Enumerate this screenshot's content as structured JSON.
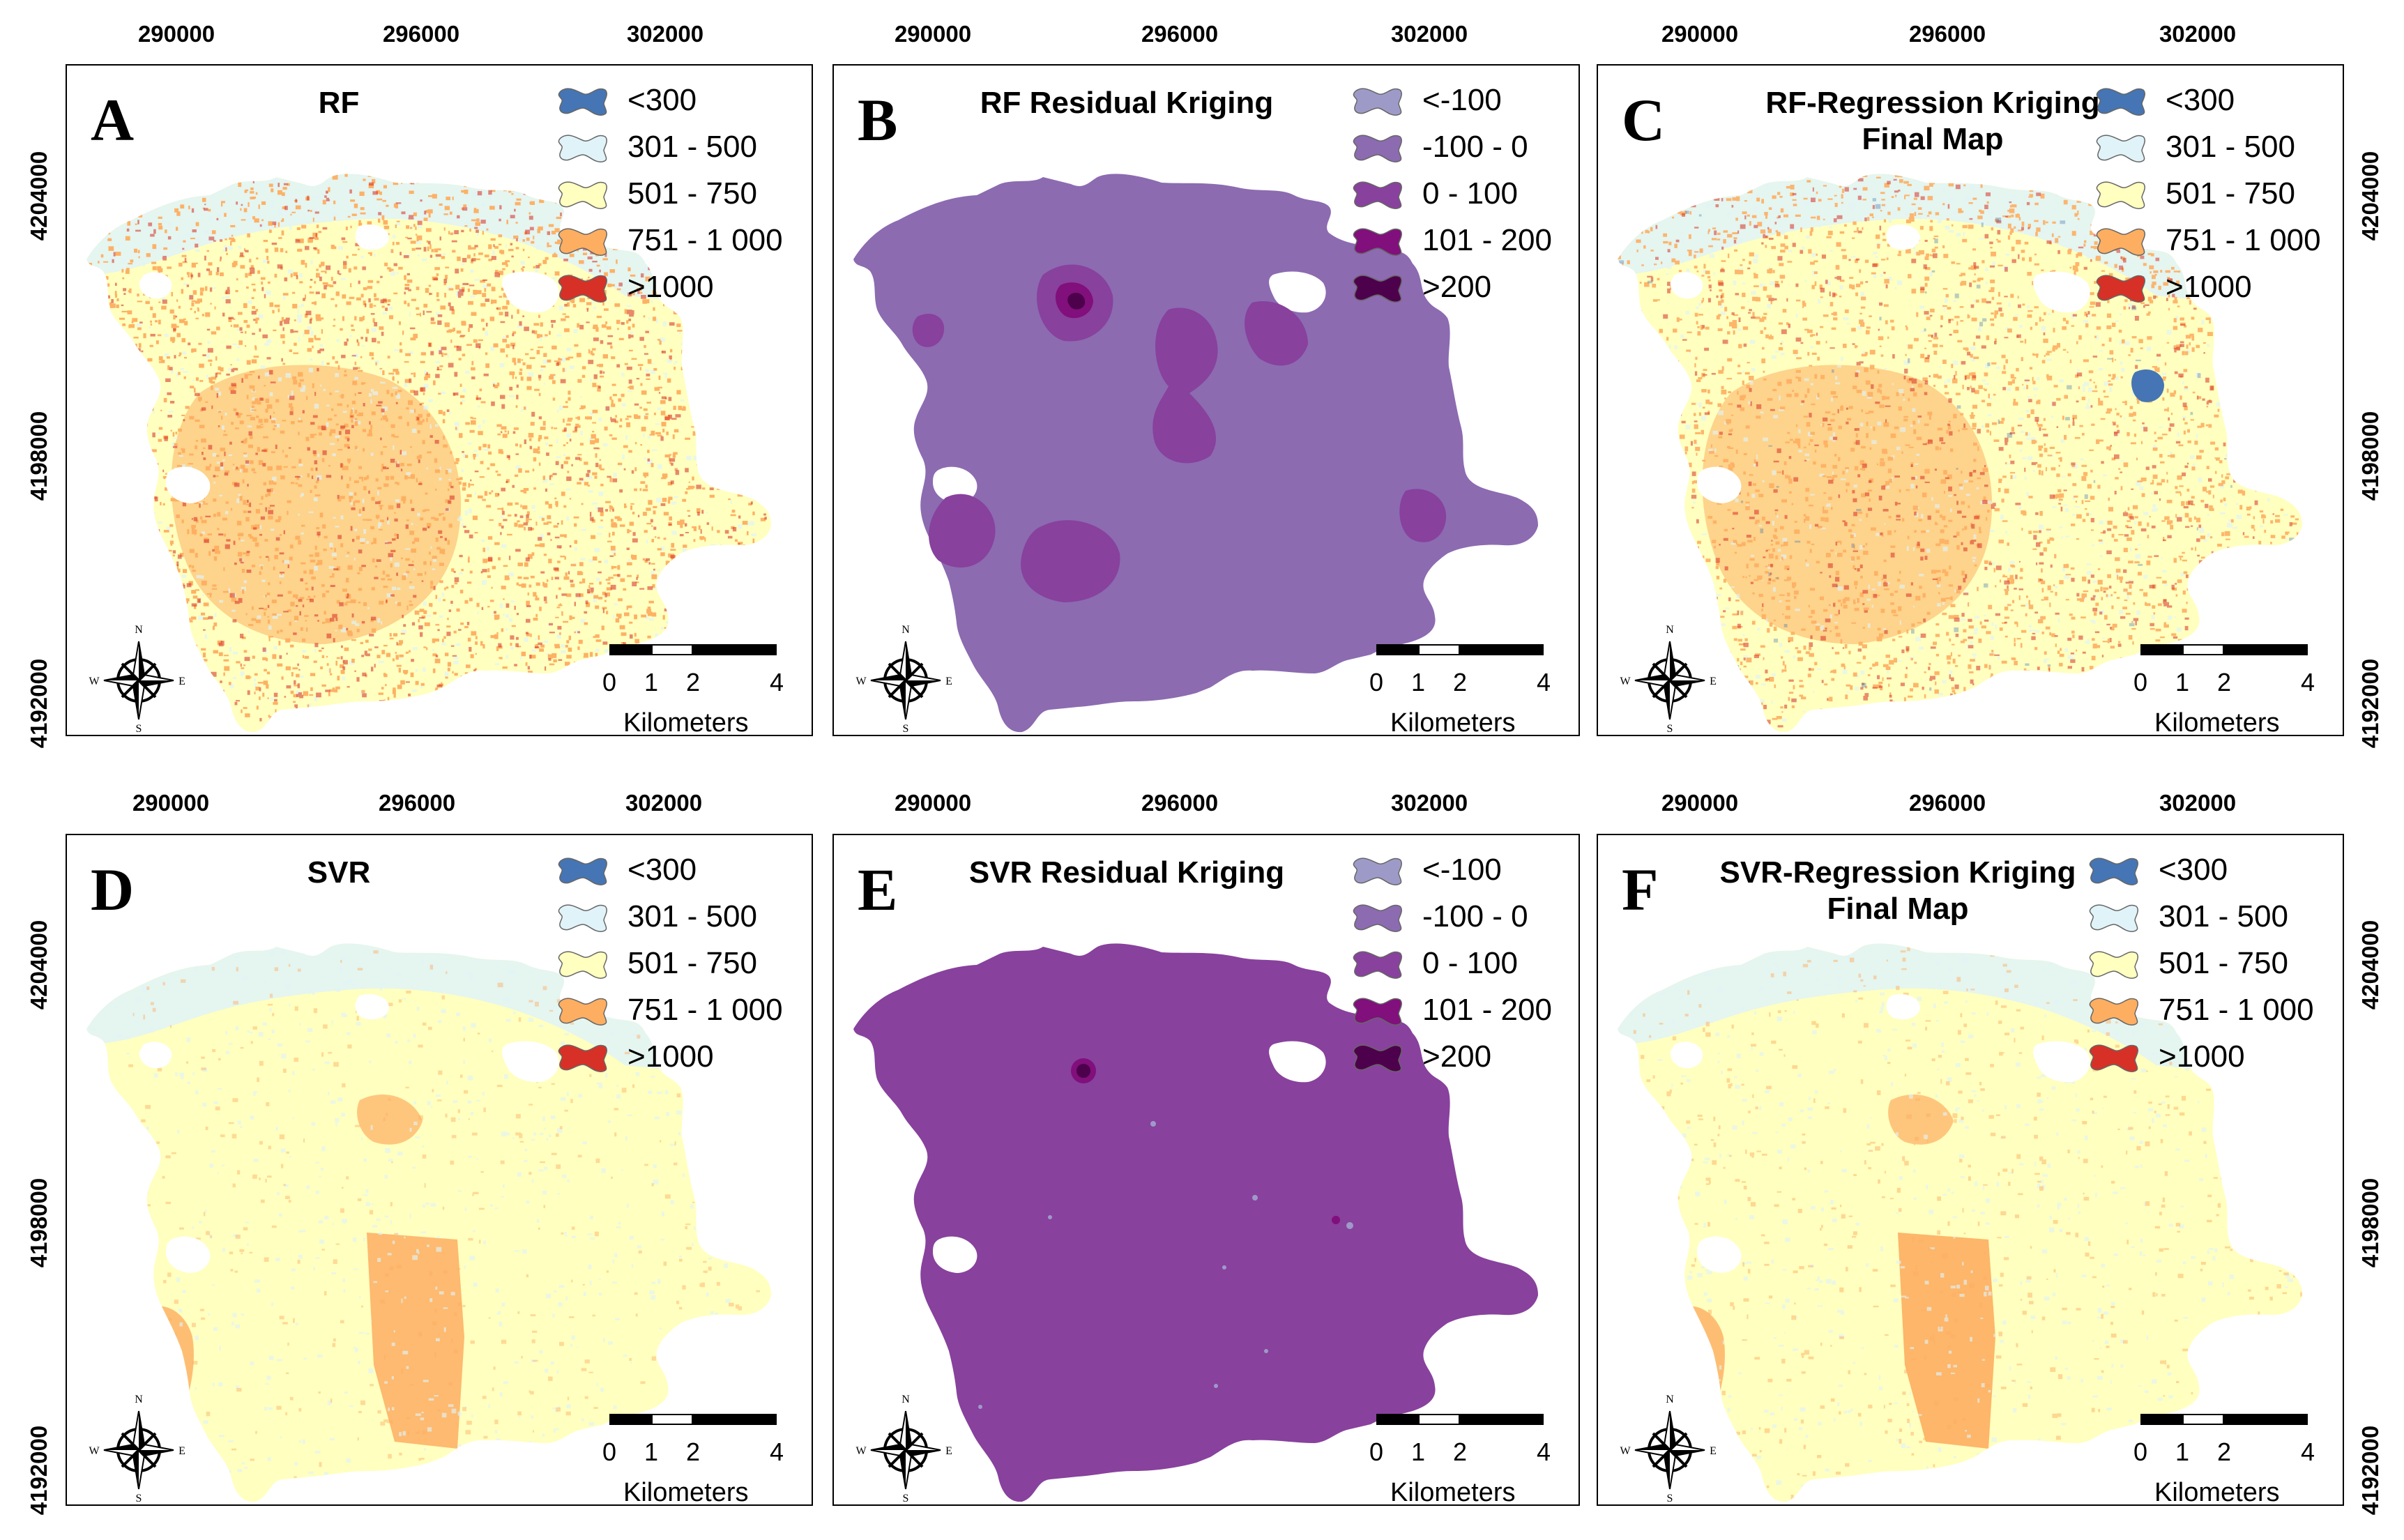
{
  "x_labels": [
    "290000",
    "296000",
    "302000"
  ],
  "y_labels": [
    "4204000",
    "4198000",
    "4192000"
  ],
  "panels": {
    "A": {
      "letter": "A",
      "title_line1": "RF",
      "title_line2": "",
      "type": "prediction"
    },
    "B": {
      "letter": "B",
      "title_line1": "RF Residual Kriging",
      "title_line2": "",
      "type": "residual"
    },
    "C": {
      "letter": "C",
      "title_line1": "RF-Regression Kriging",
      "title_line2": "Final Map",
      "type": "prediction"
    },
    "D": {
      "letter": "D",
      "title_line1": "SVR",
      "title_line2": "",
      "type": "prediction"
    },
    "E": {
      "letter": "E",
      "title_line1": "SVR Residual Kriging",
      "title_line2": "",
      "type": "residual"
    },
    "F": {
      "letter": "F",
      "title_line1": "SVR-Regression Kriging",
      "title_line2": "Final Map",
      "type": "prediction"
    }
  },
  "legend_prediction": [
    {
      "label": "<300",
      "color": "#4575b4"
    },
    {
      "label": "301 - 500",
      "color": "#e0f3f8"
    },
    {
      "label": "501 - 750",
      "color": "#ffffbf"
    },
    {
      "label": "751 - 1 000",
      "color": "#fdae61"
    },
    {
      "label": ">1000",
      "color": "#d73027"
    }
  ],
  "legend_residual": [
    {
      "label": "<-100",
      "color": "#9e9ac8"
    },
    {
      "label": "-100 - 0",
      "color": "#8c6bb1"
    },
    {
      "label": "0 - 100",
      "color": "#88419d"
    },
    {
      "label": "101 - 200",
      "color": "#810f7c"
    },
    {
      "label": ">200",
      "color": "#4d004b"
    }
  ],
  "scale": {
    "ticks": [
      "0",
      "1",
      "2",
      "4"
    ],
    "unit": "Kilometers"
  },
  "compass": {
    "n": "N",
    "s": "S",
    "e": "E",
    "w": "W"
  }
}
